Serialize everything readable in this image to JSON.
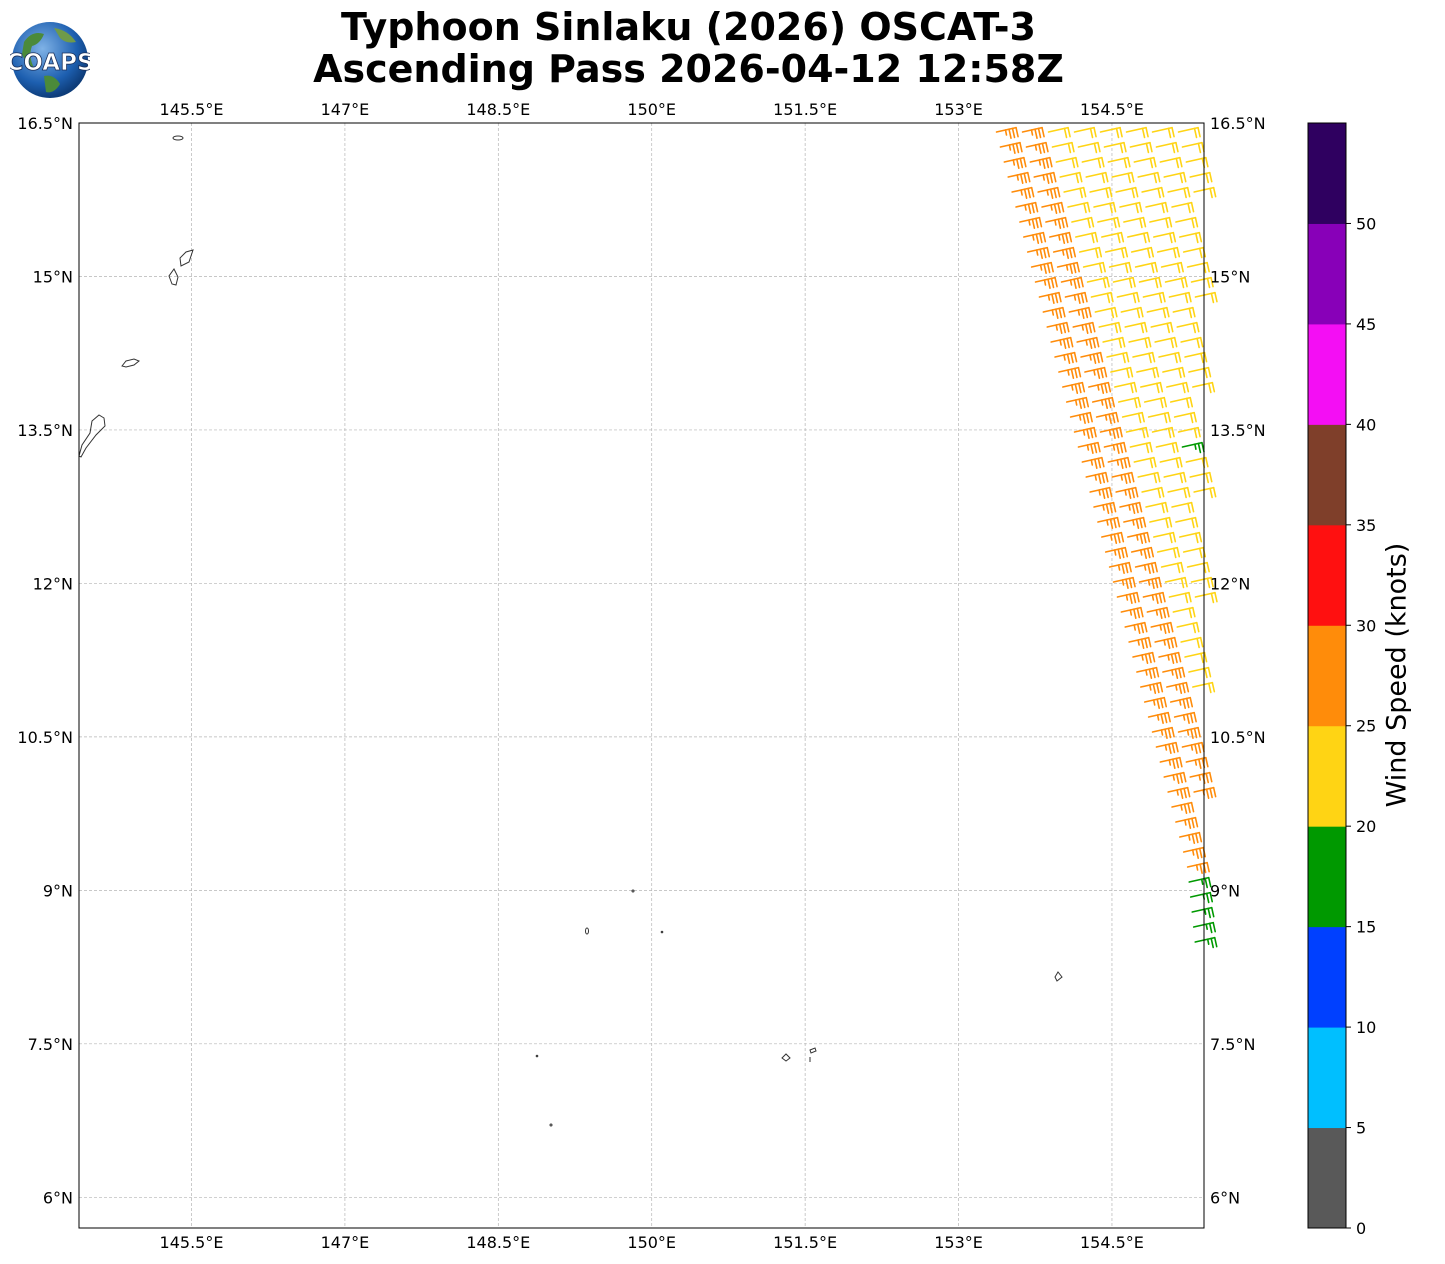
{
  "header": {
    "title_line1": "Typhoon Sinlaku (2026) OSCAT-3",
    "title_line2": "Ascending Pass 2026-04-12 12:58Z",
    "logo_text": "COAPS"
  },
  "map": {
    "lon_range": [
      144.4,
      155.4
    ],
    "lat_range": [
      5.7,
      16.5
    ],
    "lon_ticks": [
      "145.5°E",
      "147°E",
      "148.5°E",
      "150°E",
      "151.5°E",
      "153°E",
      "154.5°E"
    ],
    "lat_ticks": [
      "16.5°N",
      "15°N",
      "13.5°N",
      "12°N",
      "10.5°N",
      "9°N",
      "7.5°N",
      "6°N"
    ],
    "gridlines": true
  },
  "colorbar": {
    "label": "Wind Speed (knots)",
    "ticks": [
      "0",
      "5",
      "10",
      "15",
      "20",
      "25",
      "30",
      "35",
      "40",
      "45",
      "50"
    ],
    "colors": [
      "#595959",
      "#00bfff",
      "#0040ff",
      "#009900",
      "#ffd414",
      "#ff8c0a",
      "#ff1010",
      "#7f3f2a",
      "#f40ef4",
      "#8800b8",
      "#2f0060"
    ]
  }
}
